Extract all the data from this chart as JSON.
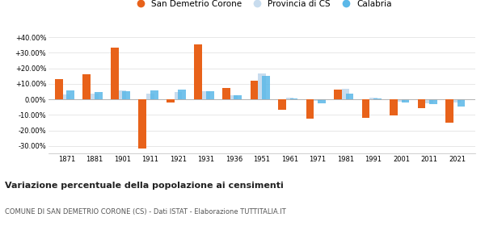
{
  "years": [
    1871,
    1881,
    1901,
    1911,
    1921,
    1931,
    1936,
    1951,
    1961,
    1971,
    1981,
    1991,
    2001,
    2011,
    2021
  ],
  "san_demetrio": [
    13.0,
    16.0,
    33.5,
    -31.5,
    -2.0,
    35.5,
    7.5,
    12.0,
    -6.5,
    -12.5,
    6.5,
    -12.0,
    -10.5,
    -5.5,
    -15.0
  ],
  "provincia_cs": [
    3.0,
    3.5,
    5.5,
    3.5,
    4.5,
    5.0,
    2.5,
    16.5,
    1.0,
    -1.0,
    7.0,
    1.0,
    -1.5,
    -2.5,
    -2.0
  ],
  "calabria": [
    5.5,
    4.5,
    5.0,
    5.5,
    6.0,
    5.0,
    2.5,
    15.0,
    0.5,
    -2.5,
    3.5,
    0.5,
    -2.0,
    -3.0,
    -4.5
  ],
  "color_san_demetrio": "#E8621A",
  "color_provincia": "#C8DCEE",
  "color_calabria": "#5BB8E8",
  "bg_color": "#f5f5f5",
  "ylim": [
    -35,
    45
  ],
  "yticks": [
    -30,
    -20,
    -10,
    0,
    10,
    20,
    30,
    40
  ],
  "ytick_labels": [
    "-30.00%",
    "-20.00%",
    "-10.00%",
    "0.00%",
    "+10.00%",
    "+20.00%",
    "+30.00%",
    "+40.00%"
  ],
  "title": "Variazione percentuale della popolazione ai censimenti",
  "subtitle": "COMUNE DI SAN DEMETRIO CORONE (CS) - Dati ISTAT - Elaborazione TUTTITALIA.IT",
  "legend_labels": [
    "San Demetrio Corone",
    "Provincia di CS",
    "Calabria"
  ],
  "bar_width": 0.28
}
